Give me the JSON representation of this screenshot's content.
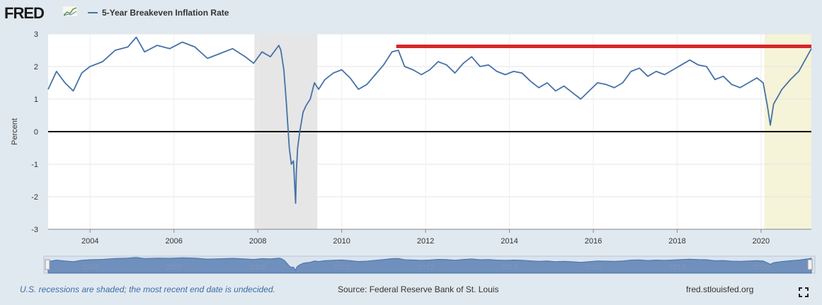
{
  "header": {
    "logo_text": "FRED",
    "series_label": "5-Year Breakeven Inflation Rate",
    "series_color": "#4572a7"
  },
  "footer": {
    "note": "U.S. recessions are shaded; the most recent end date is undecided.",
    "source": "Source: Federal Reserve Bank of St. Louis",
    "url": "fred.stlouisfed.org"
  },
  "icons": {
    "fullscreen": "fullscreen-icon",
    "logo_graph": "graph-icon"
  },
  "chart_data": {
    "type": "line",
    "title": "",
    "xlabel": "",
    "ylabel": "Percent",
    "xlim": [
      2003.0,
      2021.2
    ],
    "ylim": [
      -3,
      3
    ],
    "y_ticks": [
      -3,
      -2,
      -1,
      0,
      1,
      2,
      3
    ],
    "x_ticks": [
      2004,
      2006,
      2008,
      2010,
      2012,
      2014,
      2016,
      2018,
      2020
    ],
    "grid": true,
    "colors": {
      "series": "#4572a7",
      "zero_line": "#000000",
      "threshold_line": "#d62728",
      "recession": "#e6e6e6",
      "recent_recession": "#f5f3d8"
    },
    "recessions": [
      {
        "start": 2007.92,
        "end": 2009.42
      },
      {
        "start": 2020.08,
        "end": 2021.2
      }
    ],
    "annotations": [
      {
        "type": "horizontal_line",
        "y": 2.62,
        "x_start": 2011.3,
        "x_end": 2021.2,
        "color": "#d62728"
      }
    ],
    "series": [
      {
        "name": "5-Year Breakeven Inflation Rate",
        "x": [
          2003.0,
          2003.2,
          2003.4,
          2003.6,
          2003.8,
          2004.0,
          2004.3,
          2004.6,
          2004.9,
          2005.1,
          2005.3,
          2005.6,
          2005.9,
          2006.2,
          2006.5,
          2006.8,
          2007.1,
          2007.4,
          2007.7,
          2007.9,
          2008.1,
          2008.3,
          2008.5,
          2008.55,
          2008.62,
          2008.68,
          2008.75,
          2008.8,
          2008.85,
          2008.9,
          2008.92,
          2008.95,
          2009.0,
          2009.08,
          2009.15,
          2009.25,
          2009.35,
          2009.45,
          2009.6,
          2009.8,
          2010.0,
          2010.2,
          2010.4,
          2010.6,
          2010.8,
          2011.0,
          2011.2,
          2011.35,
          2011.5,
          2011.7,
          2011.9,
          2012.1,
          2012.3,
          2012.5,
          2012.7,
          2012.9,
          2013.1,
          2013.3,
          2013.5,
          2013.7,
          2013.9,
          2014.1,
          2014.3,
          2014.5,
          2014.7,
          2014.9,
          2015.1,
          2015.3,
          2015.5,
          2015.7,
          2015.9,
          2016.1,
          2016.3,
          2016.5,
          2016.7,
          2016.9,
          2017.1,
          2017.3,
          2017.5,
          2017.7,
          2017.9,
          2018.1,
          2018.3,
          2018.5,
          2018.7,
          2018.9,
          2019.1,
          2019.3,
          2019.5,
          2019.7,
          2019.9,
          2020.05,
          2020.15,
          2020.22,
          2020.3,
          2020.5,
          2020.7,
          2020.9,
          2021.05,
          2021.2
        ],
        "y": [
          1.3,
          1.85,
          1.5,
          1.25,
          1.8,
          2.0,
          2.15,
          2.5,
          2.6,
          2.9,
          2.45,
          2.65,
          2.55,
          2.75,
          2.6,
          2.25,
          2.4,
          2.55,
          2.3,
          2.1,
          2.45,
          2.3,
          2.65,
          2.5,
          1.9,
          0.9,
          -0.5,
          -1.0,
          -0.9,
          -2.2,
          -1.2,
          -0.5,
          0.0,
          0.6,
          0.8,
          1.0,
          1.5,
          1.3,
          1.6,
          1.8,
          1.9,
          1.65,
          1.3,
          1.45,
          1.75,
          2.05,
          2.45,
          2.5,
          2.0,
          1.9,
          1.75,
          1.9,
          2.15,
          2.05,
          1.8,
          2.1,
          2.3,
          2.0,
          2.05,
          1.85,
          1.75,
          1.85,
          1.8,
          1.55,
          1.35,
          1.5,
          1.25,
          1.4,
          1.2,
          1.0,
          1.25,
          1.5,
          1.45,
          1.35,
          1.5,
          1.85,
          1.95,
          1.7,
          1.85,
          1.75,
          1.9,
          2.05,
          2.2,
          2.05,
          2.0,
          1.6,
          1.7,
          1.45,
          1.35,
          1.5,
          1.65,
          1.5,
          0.8,
          0.2,
          0.85,
          1.3,
          1.6,
          1.85,
          2.2,
          2.55
        ]
      }
    ]
  }
}
